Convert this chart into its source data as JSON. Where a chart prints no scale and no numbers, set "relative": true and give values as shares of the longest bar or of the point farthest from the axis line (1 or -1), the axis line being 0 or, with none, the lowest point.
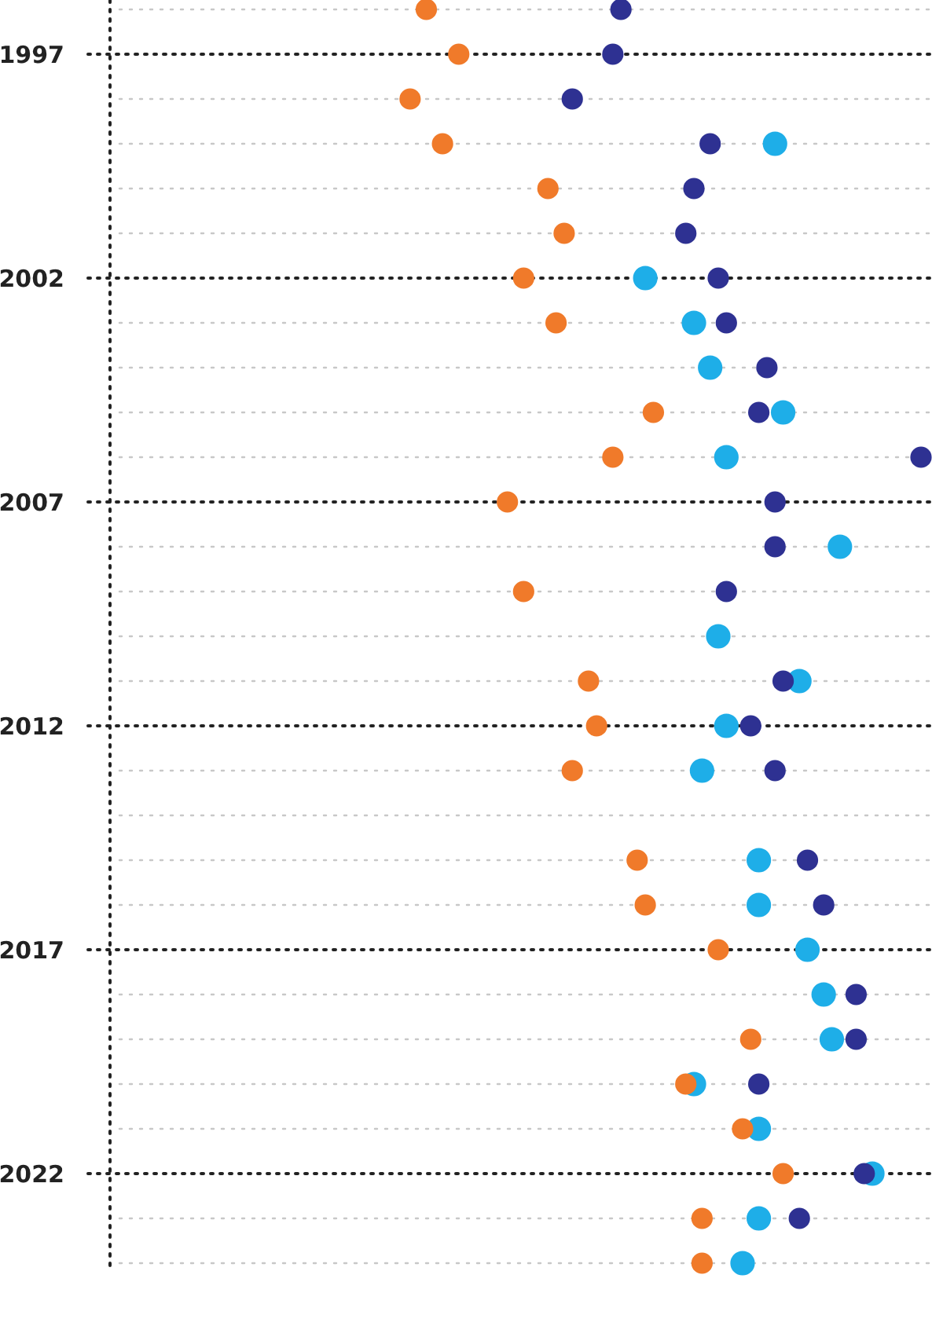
{
  "chart_data": {
    "type": "scatter",
    "orientation": "horizontal",
    "relative": true,
    "grid": "y",
    "marker": "circle",
    "categories": [
      null,
      "1997",
      null,
      null,
      null,
      null,
      "2002",
      null,
      null,
      null,
      null,
      "2007",
      null,
      null,
      null,
      null,
      "2012",
      null,
      null,
      null,
      null,
      "2017",
      null,
      null,
      null,
      null,
      "2022",
      null,
      null
    ],
    "series": [
      {
        "color": "#1eaee8",
        "values": [
          null,
          null,
          null,
          0.82,
          null,
          null,
          0.66,
          0.72,
          0.74,
          0.83,
          0.76,
          null,
          0.9,
          null,
          0.75,
          0.85,
          0.76,
          0.73,
          null,
          0.8,
          0.8,
          0.86,
          0.88,
          0.89,
          0.72,
          0.8,
          0.94,
          0.8,
          0.78
        ]
      },
      {
        "color": "#2e3192",
        "values": [
          0.63,
          0.62,
          0.57,
          0.74,
          0.72,
          0.71,
          0.75,
          0.76,
          0.81,
          0.8,
          1,
          0.82,
          0.82,
          0.76,
          null,
          0.83,
          0.79,
          0.82,
          null,
          0.86,
          0.88,
          null,
          0.92,
          0.92,
          0.8,
          null,
          0.93,
          0.85,
          null
        ]
      },
      {
        "color": "#f07a2a",
        "values": [
          0.39,
          0.43,
          0.37,
          0.41,
          0.54,
          0.56,
          0.51,
          0.55,
          null,
          0.67,
          0.62,
          0.49,
          null,
          0.51,
          null,
          0.59,
          0.6,
          0.57,
          null,
          0.65,
          0.66,
          0.75,
          null,
          0.79,
          0.71,
          0.78,
          0.83,
          0.73,
          0.73
        ]
      }
    ]
  }
}
